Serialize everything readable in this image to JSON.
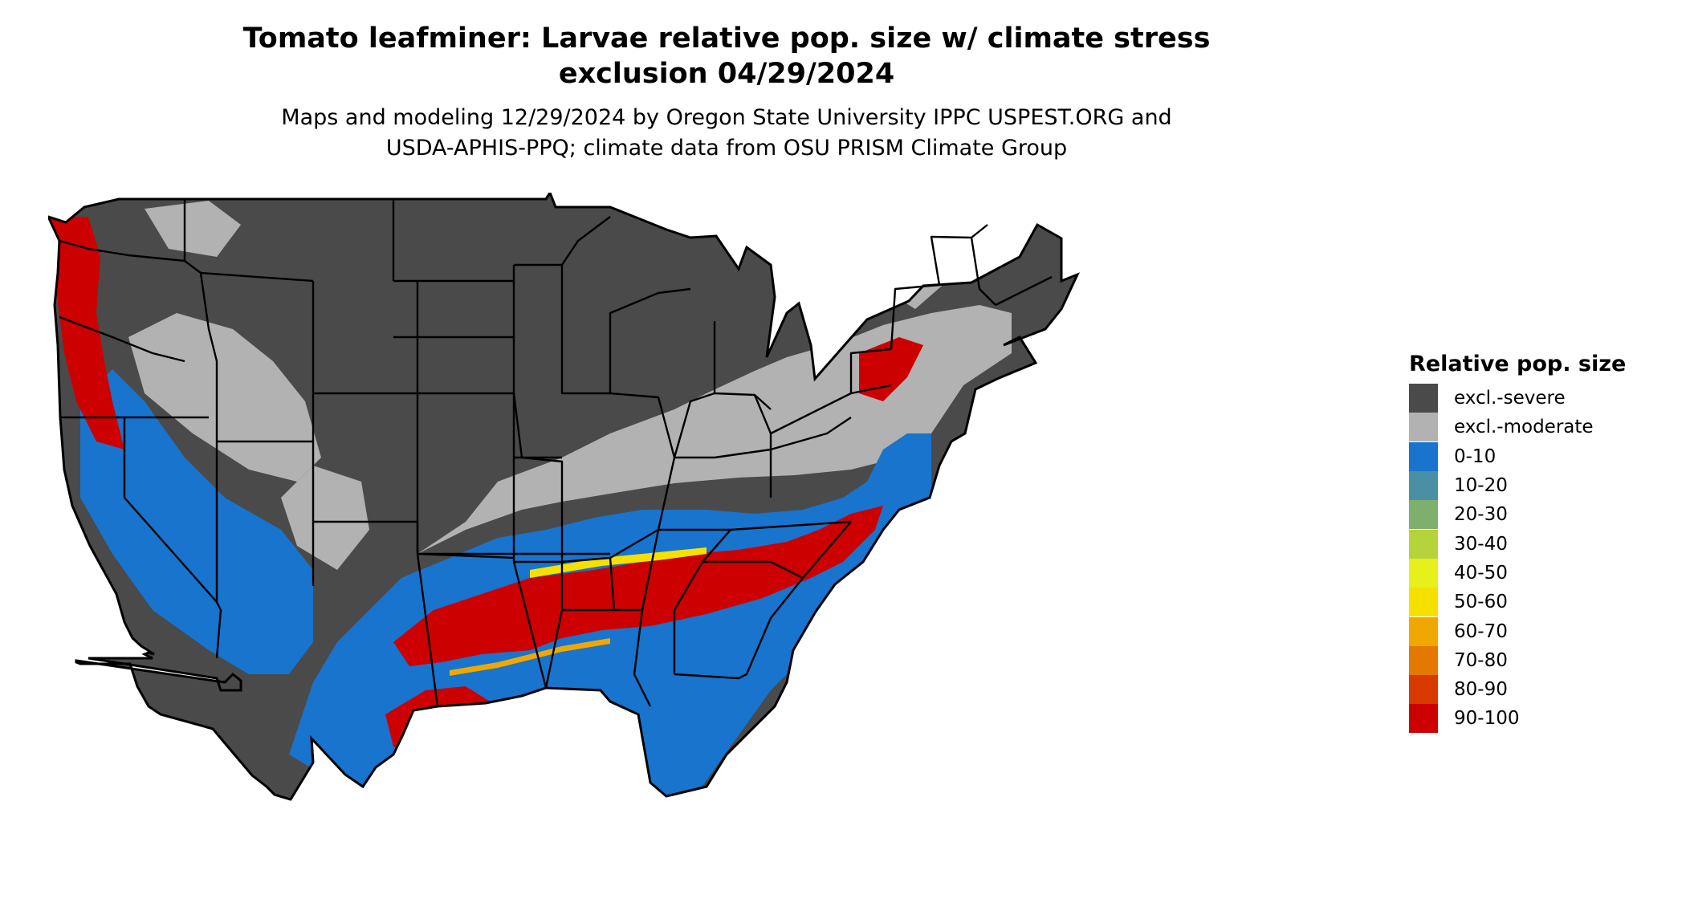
{
  "header": {
    "title_line1": "Tomato leafminer: Larvae relative pop. size w/ climate stress",
    "title_line2": "exclusion 04/29/2024",
    "subtitle_line1": "Maps and modeling 12/29/2024 by Oregon State University IPPC USPEST.ORG and",
    "subtitle_line2": "USDA-APHIS-PPQ; climate data from OSU PRISM Climate Group"
  },
  "map": {
    "region": "Contiguous United States",
    "colors": {
      "excl_severe": "#4a4a4a",
      "excl_moderate": "#b2b2b2",
      "band_0_10": "#1874cd",
      "band_40_60": "#f6e600",
      "band_60_80": "#f0a000",
      "band_90_100": "#cd0000",
      "borders": "#000000"
    }
  },
  "legend": {
    "title": "Relative pop. size",
    "items": [
      {
        "label": "excl.-severe",
        "color": "#4a4a4a"
      },
      {
        "label": "excl.-moderate",
        "color": "#b2b2b2"
      },
      {
        "label": "0-10",
        "color": "#1874cd"
      },
      {
        "label": "10-20",
        "color": "#4a90a4"
      },
      {
        "label": "20-30",
        "color": "#7faf6e"
      },
      {
        "label": "30-40",
        "color": "#b5d43c"
      },
      {
        "label": "40-50",
        "color": "#e7ef1c"
      },
      {
        "label": "50-60",
        "color": "#f6e000"
      },
      {
        "label": "60-70",
        "color": "#f0a800"
      },
      {
        "label": "70-80",
        "color": "#e57800"
      },
      {
        "label": "80-90",
        "color": "#d83a00"
      },
      {
        "label": "90-100",
        "color": "#cd0000"
      }
    ]
  }
}
